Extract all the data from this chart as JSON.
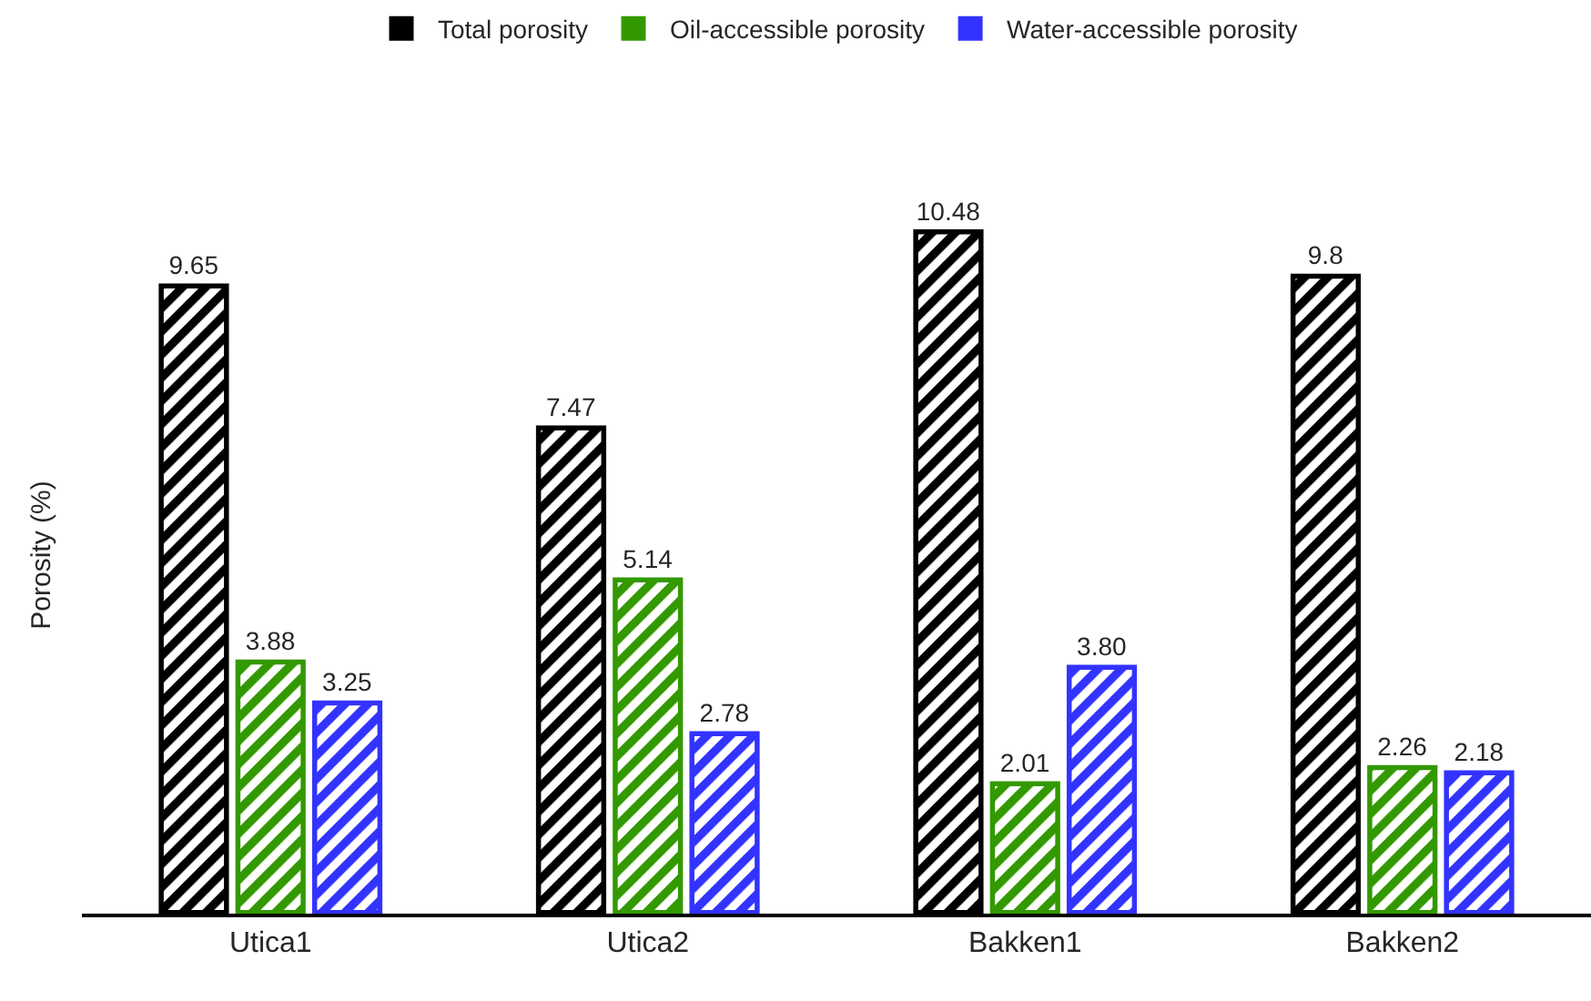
{
  "chart_data": {
    "type": "bar",
    "ylabel": "Porosity (%)",
    "categories": [
      "Utica1",
      "Utica2",
      "Bakken1",
      "Bakken2"
    ],
    "series": [
      {
        "name": "Total porosity",
        "color": "#000000",
        "values": [
          9.65,
          7.47,
          10.48,
          9.8
        ],
        "value_labels": [
          "9.65",
          "7.47",
          "10.48",
          "9.8"
        ]
      },
      {
        "name": "Oil-accessible porosity",
        "color": "#339900",
        "values": [
          3.88,
          5.14,
          2.01,
          2.26
        ],
        "value_labels": [
          "3.88",
          "5.14",
          "2.01",
          "2.26"
        ]
      },
      {
        "name": "Water-accessible porosity",
        "color": "#3333ff",
        "values": [
          3.25,
          2.78,
          3.8,
          2.18
        ],
        "value_labels": [
          "3.25",
          "2.78",
          "3.80",
          "2.18"
        ]
      }
    ],
    "legend": "top",
    "grid": false,
    "tick_labels": "x"
  }
}
